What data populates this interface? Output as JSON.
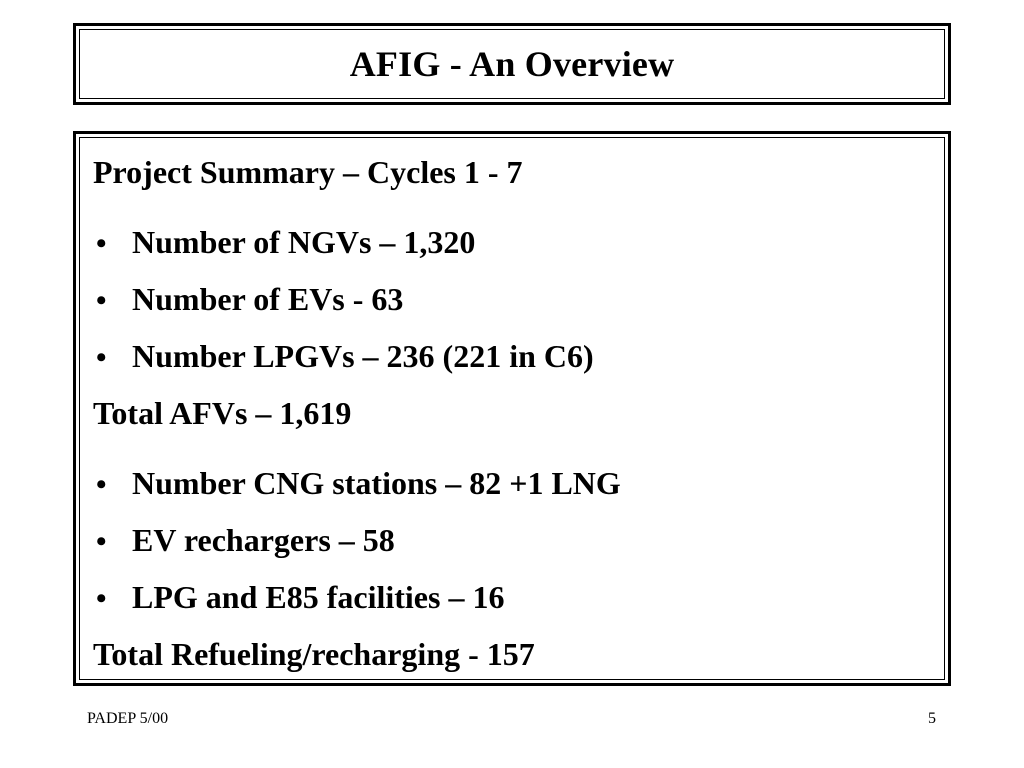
{
  "slide": {
    "title": "AFIG - An Overview",
    "heading": "Project Summary –  Cycles 1 - 7",
    "vehicle_items": [
      "Number of NGVs – 1,320",
      "Number of EVs - 63",
      "Number LPGVs – 236 (221 in C6)"
    ],
    "vehicle_total": "Total AFVs – 1,619",
    "facility_items": [
      "Number CNG stations – 82 +1 LNG",
      "EV rechargers – 58",
      "LPG and E85 facilities – 16"
    ],
    "facility_total": "Total Refueling/recharging - 157",
    "bullet_glyph": "•"
  },
  "footer": {
    "left": "PADEP 5/00",
    "page_number": "5"
  }
}
